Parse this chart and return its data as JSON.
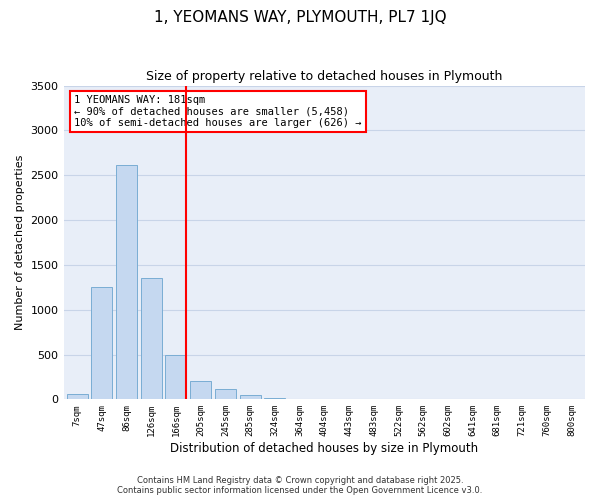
{
  "title": "1, YEOMANS WAY, PLYMOUTH, PL7 1JQ",
  "subtitle": "Size of property relative to detached houses in Plymouth",
  "xlabel": "Distribution of detached houses by size in Plymouth",
  "ylabel": "Number of detached properties",
  "bar_labels": [
    "7sqm",
    "47sqm",
    "86sqm",
    "126sqm",
    "166sqm",
    "205sqm",
    "245sqm",
    "285sqm",
    "324sqm",
    "364sqm",
    "404sqm",
    "443sqm",
    "483sqm",
    "522sqm",
    "562sqm",
    "602sqm",
    "641sqm",
    "681sqm",
    "721sqm",
    "760sqm",
    "800sqm"
  ],
  "bar_values": [
    55,
    1250,
    2610,
    1350,
    500,
    200,
    110,
    50,
    20,
    5,
    2,
    1,
    0,
    0,
    0,
    0,
    0,
    0,
    0,
    0,
    0
  ],
  "bar_color": "#c5d8f0",
  "bar_edge_color": "#7aadd4",
  "vline_bar_index": 4,
  "vline_color": "red",
  "ylim": [
    0,
    3500
  ],
  "yticks": [
    0,
    500,
    1000,
    1500,
    2000,
    2500,
    3000,
    3500
  ],
  "annotation_title": "1 YEOMANS WAY: 181sqm",
  "annotation_line1": "← 90% of detached houses are smaller (5,458)",
  "annotation_line2": "10% of semi-detached houses are larger (626) →",
  "annotation_box_color": "#ffffff",
  "annotation_box_edge": "red",
  "grid_color": "#c8d4e8",
  "bg_color": "#e8eef8",
  "footer1": "Contains HM Land Registry data © Crown copyright and database right 2025.",
  "footer2": "Contains public sector information licensed under the Open Government Licence v3.0."
}
